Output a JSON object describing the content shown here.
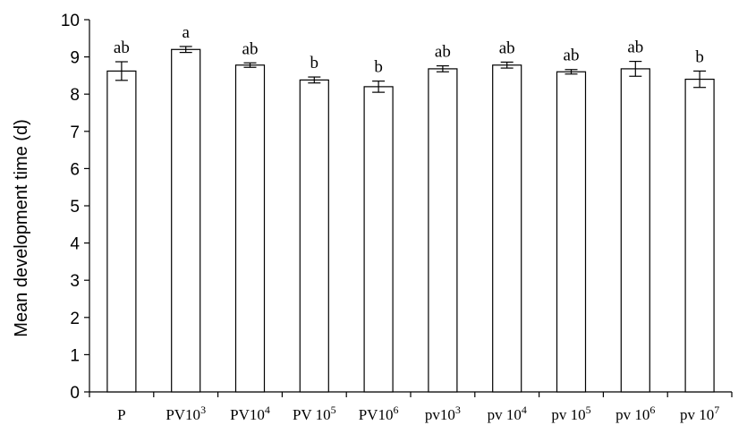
{
  "chart_data": {
    "type": "bar",
    "ylabel": "Mean development time (d)",
    "ylim": [
      0,
      10
    ],
    "yticks": [
      "0",
      "1",
      "2",
      "3",
      "4",
      "5",
      "6",
      "7",
      "8",
      "9",
      "10"
    ],
    "grid": false,
    "categories": [
      {
        "base": "P",
        "exp": ""
      },
      {
        "base": "PV10",
        "exp": "3"
      },
      {
        "base": "PV10",
        "exp": "4"
      },
      {
        "base": "PV 10",
        "exp": "5"
      },
      {
        "base": "PV10",
        "exp": "6"
      },
      {
        "base": "pv10",
        "exp": "3"
      },
      {
        "base": "pv 10",
        "exp": "4"
      },
      {
        "base": "pv 10",
        "exp": "5"
      },
      {
        "base": "pv 10",
        "exp": "6"
      },
      {
        "base": "pv 10",
        "exp": "7"
      }
    ],
    "values": [
      8.62,
      9.2,
      8.78,
      8.38,
      8.2,
      8.68,
      8.78,
      8.6,
      8.68,
      8.4
    ],
    "errors": [
      0.25,
      0.08,
      0.06,
      0.08,
      0.15,
      0.08,
      0.08,
      0.06,
      0.2,
      0.22
    ],
    "significance": [
      "ab",
      "a",
      "ab",
      "b",
      "b",
      "ab",
      "ab",
      "ab",
      "ab",
      "b"
    ]
  }
}
